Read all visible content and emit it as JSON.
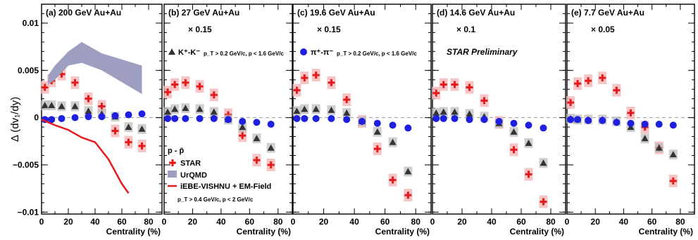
{
  "figure": {
    "y_axis_label": "Δ (dv₁/dy)",
    "x_axis_label": "Centrality (%)",
    "y_ticks": [
      "0.01",
      "0.005",
      "0",
      "−0.005",
      "−0.01"
    ],
    "x_ticks": [
      "0",
      "20",
      "40",
      "60",
      "80"
    ],
    "preliminary_label": "STAR Preliminary",
    "colors": {
      "star": "#e41a1c",
      "kaon": "#333333",
      "pion": "#1f1fe0",
      "urqmd": "#9e9ec0",
      "hydro": "#e41a1c"
    }
  },
  "legend": {
    "kaon_label": "K⁺-K⁻",
    "kaon_sub": "p_T > 0.2 GeV/c, p < 1.6 GeV/c",
    "pion_label": "π⁺-π⁻",
    "pion_sub": "p_T > 0.2 GeV/c, p < 1.6 GeV/c",
    "proton_title": "p - p̄",
    "star": "STAR",
    "urqmd": "UrQMD",
    "hydro": "iEBE-VISHNU + EM-Field",
    "cuts": "p_T > 0.4 GeV/c, p < 2 GeV/c"
  },
  "chart_data": [
    {
      "type": "scatter",
      "panel": "(a) 200 GeV Au+Au",
      "scale": "",
      "xlabel": "Centrality (%)",
      "ylabel": "Δ (dv₁/dy)",
      "xlim": [
        0,
        90
      ],
      "ylim": [
        -0.0102,
        0.012
      ],
      "series": [
        {
          "name": "STAR p-p̄",
          "x": [
            2.5,
            7.5,
            15,
            25,
            35,
            45,
            55,
            65,
            75
          ],
          "y": [
            0.0032,
            0.0039,
            0.0046,
            0.0037,
            0.002,
            0.0012,
            -0.0014,
            -0.0026,
            -0.003
          ]
        },
        {
          "name": "K⁺-K⁻",
          "x": [
            2.5,
            7.5,
            15,
            25,
            35,
            45,
            55,
            65,
            75
          ],
          "y": [
            0.0013,
            0.0013,
            0.0012,
            0.0012,
            0.0007,
            0.0004,
            0.0001,
            -0.001,
            -0.0012
          ]
        },
        {
          "name": "π⁺-π⁻",
          "x": [
            2.5,
            7.5,
            15,
            25,
            35,
            45,
            55,
            65,
            75
          ],
          "y": [
            -0.0002,
            -0.0002,
            -0.0001,
            0.0,
            0.0001,
            0.0001,
            0.0002,
            0.0003,
            0.0004
          ]
        },
        {
          "name": "UrQMD",
          "x": [
            5,
            10,
            20,
            30,
            45,
            75
          ],
          "y_low": [
            0.0035,
            0.004,
            0.0055,
            0.0058,
            0.005,
            0.0025
          ],
          "y_high": [
            0.0045,
            0.0055,
            0.007,
            0.008,
            0.0068,
            0.0055
          ]
        },
        {
          "name": "iEBE-VISHNU + EM-Field",
          "x": [
            0,
            10,
            20,
            30,
            40,
            50,
            60,
            65
          ],
          "y": [
            -0.0002,
            -0.0008,
            -0.0013,
            -0.0021,
            -0.0026,
            -0.0044,
            -0.007,
            -0.008
          ]
        }
      ]
    },
    {
      "type": "scatter",
      "panel": "(b) 27 GeV Au+Au",
      "scale": "× 0.15",
      "xlim": [
        0,
        90
      ],
      "ylim": [
        -0.0102,
        0.012
      ],
      "series": [
        {
          "name": "STAR p-p̄",
          "x": [
            2.5,
            7.5,
            15,
            25,
            35,
            45,
            55,
            65,
            75
          ],
          "y": [
            0.0027,
            0.0035,
            0.0037,
            0.0033,
            0.0024,
            0.0003,
            -0.0019,
            -0.0045,
            -0.005
          ]
        },
        {
          "name": "K⁺-K⁻",
          "x": [
            2.5,
            7.5,
            15,
            25,
            35,
            45,
            55,
            65,
            75
          ],
          "y": [
            0.0006,
            0.0009,
            0.001,
            0.0009,
            0.0006,
            -0.0002,
            -0.001,
            -0.0022,
            -0.0032
          ]
        },
        {
          "name": "π⁺-π⁻",
          "x": [
            2.5,
            7.5,
            15,
            25,
            35,
            45,
            55,
            65,
            75
          ],
          "y": [
            -0.0001,
            -0.0001,
            -0.0001,
            -0.0001,
            -0.0001,
            -0.0002,
            -0.0004,
            -0.0005,
            -0.0007
          ]
        }
      ]
    },
    {
      "type": "scatter",
      "panel": "(c) 19.6 GeV Au+Au",
      "scale": "× 0.15",
      "xlim": [
        0,
        90
      ],
      "ylim": [
        -0.0102,
        0.012
      ],
      "series": [
        {
          "name": "STAR p-p̄",
          "x": [
            2.5,
            7.5,
            15,
            25,
            35,
            45,
            55,
            65,
            75
          ],
          "y": [
            0.0029,
            0.0042,
            0.0045,
            0.0037,
            0.0019,
            -0.0004,
            -0.0033,
            -0.0066,
            -0.0082
          ]
        },
        {
          "name": "K⁺-K⁻",
          "x": [
            2.5,
            7.5,
            15,
            25,
            35,
            45,
            55,
            65,
            75
          ],
          "y": [
            0.0007,
            0.0009,
            0.0009,
            0.0008,
            0.0005,
            -0.0004,
            -0.0015,
            -0.0026,
            -0.0057
          ]
        },
        {
          "name": "π⁺-π⁻",
          "x": [
            2.5,
            7.5,
            15,
            25,
            35,
            45,
            55,
            65,
            75
          ],
          "y": [
            -0.0001,
            -0.0001,
            -0.0001,
            -0.0001,
            -0.0002,
            -0.0004,
            -0.0006,
            -0.0008,
            -0.0011
          ]
        }
      ]
    },
    {
      "type": "scatter",
      "panel": "(d) 14.6 GeV Au+Au",
      "scale": "× 0.1",
      "xlim": [
        0,
        90
      ],
      "ylim": [
        -0.0102,
        0.012
      ],
      "series": [
        {
          "name": "STAR p-p̄",
          "x": [
            2.5,
            7.5,
            15,
            25,
            35,
            45,
            55,
            65,
            75
          ],
          "y": [
            0.0026,
            0.0035,
            0.0035,
            0.0032,
            0.0018,
            -0.0005,
            -0.0034,
            -0.006,
            -0.0089
          ]
        },
        {
          "name": "K⁺-K⁻",
          "x": [
            2.5,
            7.5,
            15,
            25,
            35,
            45,
            55,
            65,
            75
          ],
          "y": [
            0.0005,
            0.0006,
            0.0006,
            0.0004,
            0.0001,
            -0.0006,
            -0.0015,
            -0.0027,
            -0.0048
          ]
        },
        {
          "name": "π⁺-π⁻",
          "x": [
            2.5,
            7.5,
            15,
            25,
            35,
            45,
            55,
            65,
            75
          ],
          "y": [
            -0.0001,
            -0.0001,
            -0.0001,
            -0.0002,
            -0.0002,
            -0.0004,
            -0.0006,
            -0.0008,
            -0.0011
          ]
        }
      ]
    },
    {
      "type": "scatter",
      "panel": "(e) 7.7 GeV Au+Au",
      "scale": "× 0.05",
      "xlim": [
        0,
        90
      ],
      "ylim": [
        -0.0102,
        0.012
      ],
      "series": [
        {
          "name": "STAR p-p̄",
          "x": [
            2.5,
            7.5,
            15,
            25,
            35,
            45,
            55,
            65,
            75
          ],
          "y": [
            0.0016,
            0.0036,
            0.0039,
            0.0042,
            0.0029,
            0.0005,
            -0.001,
            -0.0032,
            -0.0067
          ]
        },
        {
          "name": "K⁺-K⁻",
          "x": [
            2.5,
            7.5,
            15,
            25,
            35,
            45,
            55,
            65,
            75
          ],
          "y": [
            -0.0001,
            -0.0002,
            -0.0002,
            -0.0002,
            -0.0004,
            -0.001,
            -0.0022,
            -0.0032,
            -0.0039
          ]
        },
        {
          "name": "π⁺-π⁻",
          "x": [
            2.5,
            7.5,
            15,
            25,
            35,
            45,
            55,
            65,
            75
          ],
          "y": [
            -0.0002,
            -0.0002,
            -0.0003,
            -0.0003,
            -0.0005,
            -0.0006,
            -0.0007,
            -0.0007,
            -0.0008
          ]
        }
      ]
    }
  ]
}
